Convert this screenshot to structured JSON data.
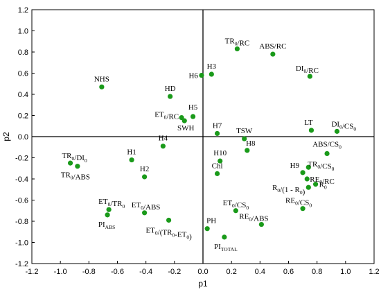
{
  "chart_data": {
    "type": "scatter",
    "xlabel": "p1",
    "ylabel": "p2",
    "xlim": [
      -1.2,
      1.2
    ],
    "ylim": [
      -1.2,
      1.2
    ],
    "xticks": [
      "-1.2",
      "-1.0",
      "-0.8",
      "-0.6",
      "-0.4",
      "-0.2",
      "0.0",
      "0.2",
      "0.4",
      "0.6",
      "0.8",
      "1.0",
      "1.2"
    ],
    "yticks": [
      "1.2",
      "1.0",
      "0.8",
      "0.6",
      "0.4",
      "0.2",
      "0.0",
      "-0.2",
      "-0.4",
      "-0.6",
      "-0.8",
      "-1.0",
      "-1.2"
    ],
    "grid": false,
    "reference_lines": "x=0, y=0",
    "marker_color": "#1a9a1a",
    "points": [
      {
        "label": "TR0/RC",
        "x": 0.24,
        "y": 0.83
      },
      {
        "label": "ABS/RC",
        "x": 0.49,
        "y": 0.78
      },
      {
        "label": "DI0/RC",
        "x": 0.75,
        "y": 0.57
      },
      {
        "label": "H3",
        "x": 0.06,
        "y": 0.59
      },
      {
        "label": "H6",
        "x": -0.01,
        "y": 0.58
      },
      {
        "label": "NHS",
        "x": -0.71,
        "y": 0.47
      },
      {
        "label": "HD",
        "x": -0.23,
        "y": 0.38
      },
      {
        "label": "ET0/RC",
        "x": -0.15,
        "y": 0.18
      },
      {
        "label": "H5",
        "x": -0.07,
        "y": 0.19
      },
      {
        "label": "SWH",
        "x": -0.13,
        "y": 0.15
      },
      {
        "label": "H7",
        "x": 0.1,
        "y": 0.03
      },
      {
        "label": "TSW",
        "x": 0.29,
        "y": -0.02
      },
      {
        "label": "LT",
        "x": 0.76,
        "y": 0.06
      },
      {
        "label": "DI0/CS0",
        "x": 0.94,
        "y": 0.05
      },
      {
        "label": "H4",
        "x": -0.28,
        "y": -0.09
      },
      {
        "label": "H8",
        "x": 0.31,
        "y": -0.13
      },
      {
        "label": "ABS/CS0",
        "x": 0.87,
        "y": -0.16
      },
      {
        "label": "TR0/DI0",
        "x": -0.93,
        "y": -0.25
      },
      {
        "label": "TR0/ABS",
        "x": -0.88,
        "y": -0.28
      },
      {
        "label": "H1",
        "x": -0.5,
        "y": -0.22
      },
      {
        "label": "H10",
        "x": 0.12,
        "y": -0.23
      },
      {
        "label": "TR0/CS0",
        "x": 0.74,
        "y": -0.29
      },
      {
        "label": "Chl",
        "x": 0.1,
        "y": -0.35
      },
      {
        "label": "H2",
        "x": -0.41,
        "y": -0.38
      },
      {
        "label": "H9",
        "x": 0.7,
        "y": -0.34
      },
      {
        "label": "RE0/RC",
        "x": 0.73,
        "y": -0.4
      },
      {
        "label": "R0",
        "x": 0.79,
        "y": -0.45
      },
      {
        "label": "R0/(1 - R0)",
        "x": 0.74,
        "y": -0.48
      },
      {
        "label": "ET0/TR0",
        "x": -0.66,
        "y": -0.69
      },
      {
        "label": "ET0/ABS",
        "x": -0.41,
        "y": -0.72
      },
      {
        "label": "PIABS",
        "x": -0.67,
        "y": -0.74
      },
      {
        "label": "ET0/CS0",
        "x": 0.23,
        "y": -0.7
      },
      {
        "label": "RE0/CS0",
        "x": 0.7,
        "y": -0.68
      },
      {
        "label": "ET0/(TR0-ET0)",
        "x": -0.24,
        "y": -0.79
      },
      {
        "label": "RE0/ABS",
        "x": 0.41,
        "y": -0.83
      },
      {
        "label": "PH",
        "x": 0.03,
        "y": -0.87
      },
      {
        "label": "PITOTAL",
        "x": 0.15,
        "y": -0.95
      }
    ]
  }
}
